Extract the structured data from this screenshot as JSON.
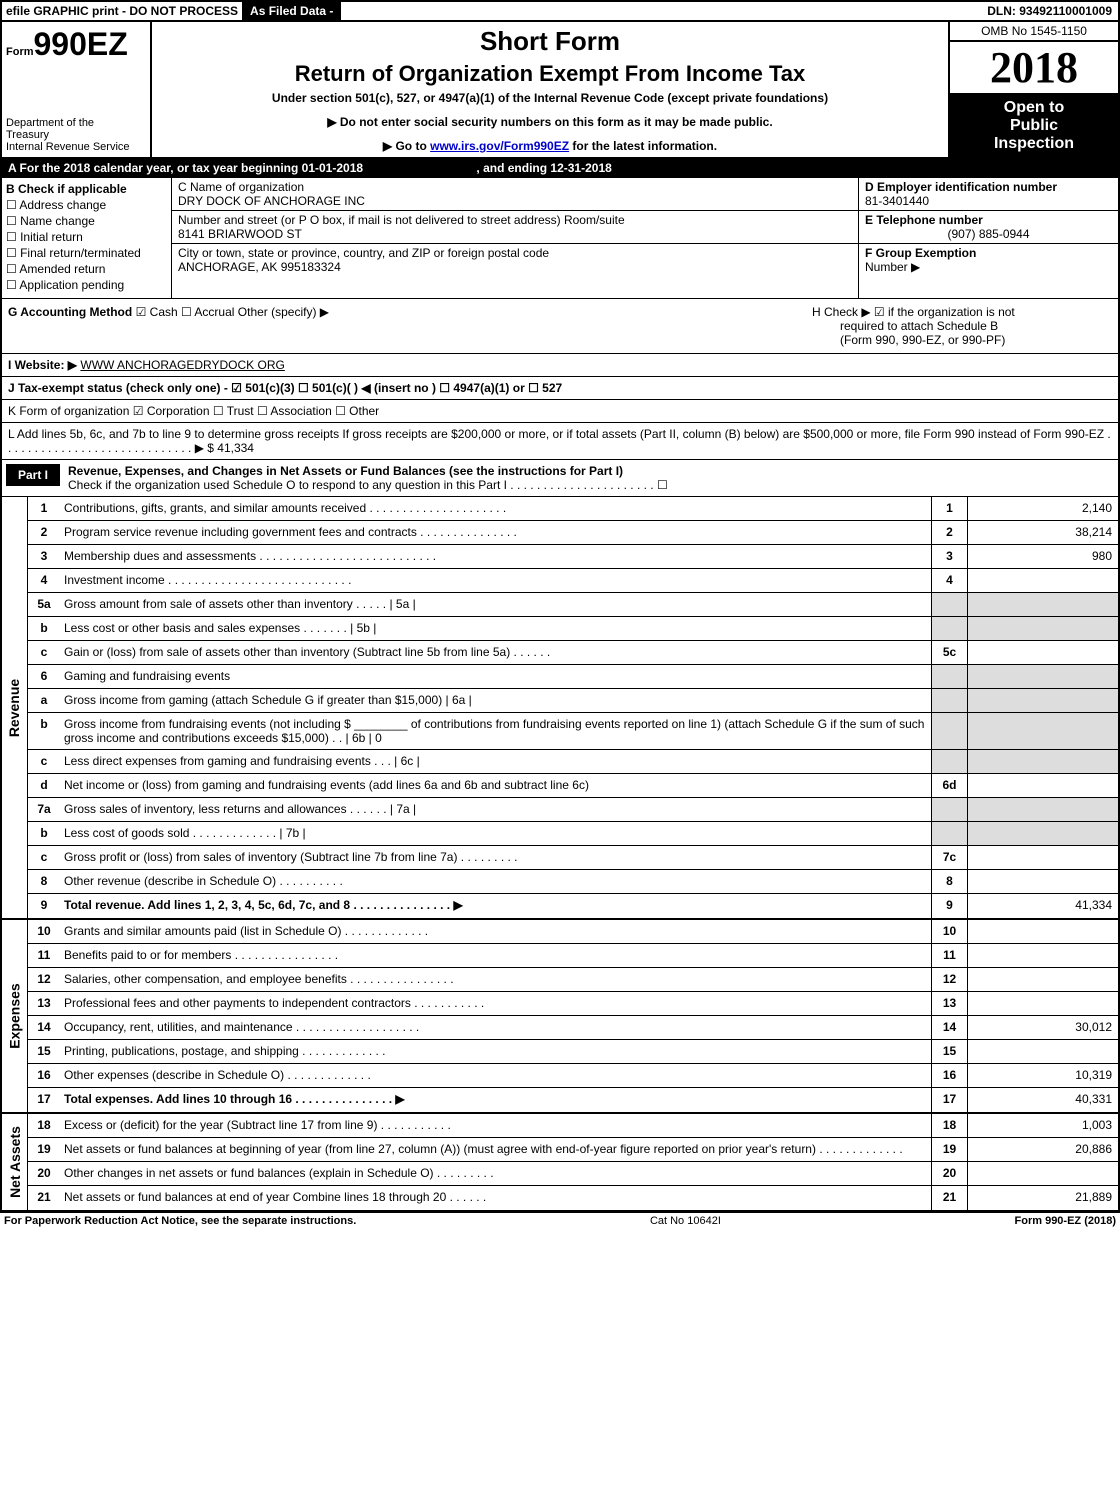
{
  "topbar": {
    "efile": "efile GRAPHIC print - DO NOT PROCESS",
    "filed": "As Filed Data -",
    "dln": "DLN: 93492110001009"
  },
  "header": {
    "form_prefix": "Form",
    "form_no": "990EZ",
    "dept1": "Department of the",
    "dept2": "Treasury",
    "dept3": "Internal Revenue Service",
    "short_form": "Short Form",
    "title": "Return of Organization Exempt From Income Tax",
    "under": "Under section 501(c), 527, or 4947(a)(1) of the Internal Revenue Code (except private foundations)",
    "note1": "▶ Do not enter social security numbers on this form as it may be made public.",
    "note2_pre": "▶ Go to ",
    "note2_link": "www.irs.gov/Form990EZ",
    "note2_post": " for the latest information.",
    "omb": "OMB No 1545-1150",
    "year": "2018",
    "open1": "Open to",
    "open2": "Public",
    "open3": "Inspection"
  },
  "row_a": {
    "pre": "A  For the 2018 calendar year, or tax year beginning 01-01-2018",
    "end": ", and ending 12-31-2018"
  },
  "col_b": {
    "title": "B  Check if applicable",
    "c1": "☐ Address change",
    "c2": "☐ Name change",
    "c3": "☐ Initial return",
    "c4": "☐ Final return/terminated",
    "c5": "☐ Amended return",
    "c6": "☐ Application pending"
  },
  "col_c": {
    "c_label": "C Name of organization",
    "c_name": "DRY DOCK OF ANCHORAGE INC",
    "addr_label": "Number and street (or P O box, if mail is not delivered to street address)    Room/suite",
    "addr": "8141 BRIARWOOD ST",
    "city_label": "City or town, state or province, country, and ZIP or foreign postal code",
    "city": "ANCHORAGE, AK  995183324"
  },
  "col_def": {
    "d_label": "D Employer identification number",
    "d_val": "81-3401440",
    "e_label": "E Telephone number",
    "e_val": "(907) 885-0944",
    "f_label": "F Group Exemption",
    "f_label2": "Number   ▶"
  },
  "gh": {
    "g_label": "G Accounting Method",
    "g_val": "   ☑ Cash   ☐ Accrual   Other (specify) ▶",
    "h_label": "H   Check ▶   ☑ if the organization is not",
    "h_line2": "required to attach Schedule B",
    "h_line3": "(Form 990, 990-EZ, or 990-PF)"
  },
  "row_i": {
    "label": "I Website: ▶",
    "val": "WWW ANCHORAGEDRYDOCK ORG"
  },
  "row_j": "J Tax-exempt status (check only one) - ☑ 501(c)(3) ☐ 501(c)( ) ◀ (insert no ) ☐ 4947(a)(1) or ☐ 527",
  "row_k": "K Form of organization     ☑ Corporation  ☐ Trust  ☐ Association  ☐ Other",
  "row_l": {
    "text": "L Add lines 5b, 6c, and 7b to line 9 to determine gross receipts  If gross receipts are $200,000 or more, or if total assets (Part II, column (B) below) are $500,000 or more, file Form 990 instead of Form 990-EZ  . . . . . . . . . . . . . . . . . . . . . . . . . . . . . ▶ $ 41,334"
  },
  "part1": {
    "tab": "Part I",
    "title": "Revenue, Expenses, and Changes in Net Assets or Fund Balances (see the instructions for Part I)",
    "sub": "Check if the organization used Schedule O to respond to any question in this Part I  . . . . . . . . . . . . . . . . . . . . . .  ☐"
  },
  "sections": [
    {
      "label": "Revenue",
      "lines": [
        {
          "n": "1",
          "d": "Contributions, gifts, grants, and similar amounts received . . . . . . . . . . . . . . . . . . . . .",
          "ref": "1",
          "amt": "2,140"
        },
        {
          "n": "2",
          "d": "Program service revenue including government fees and contracts . . . . . . . . . . . . . . .",
          "ref": "2",
          "amt": "38,214"
        },
        {
          "n": "3",
          "d": "Membership dues and assessments . . . . . . . . . . . . . . . . . . . . . . . . . . .",
          "ref": "3",
          "amt": "980"
        },
        {
          "n": "4",
          "d": "Investment income . . . . . . . . . . . . . . . . . . . . . . . . . . . .",
          "ref": "4",
          "amt": ""
        },
        {
          "n": "5a",
          "d": "Gross amount from sale of assets other than inventory . . . . .      |  5a  |",
          "ref": "",
          "amt": "",
          "shade": true
        },
        {
          "n": "b",
          "d": "Less  cost or other basis and sales expenses . . . . . . .      |  5b  |",
          "ref": "",
          "amt": "",
          "shade": true
        },
        {
          "n": "c",
          "d": "Gain or (loss) from sale of assets other than inventory (Subtract line 5b from line 5a) . . . . . .",
          "ref": "5c",
          "amt": ""
        },
        {
          "n": "6",
          "d": "Gaming and fundraising events",
          "ref": "",
          "amt": "",
          "shade": true
        },
        {
          "n": "a",
          "d": "Gross income from gaming (attach Schedule G if greater than $15,000)    |  6a  |",
          "ref": "",
          "amt": "",
          "shade": true
        },
        {
          "n": "b",
          "d": "Gross income from fundraising events (not including $ ________ of contributions from fundraising events reported on line 1) (attach Schedule G if the sum of such gross income and contributions exceeds $15,000)   . .    |  6b  |                 0",
          "ref": "",
          "amt": "",
          "shade": true
        },
        {
          "n": "c",
          "d": "Less  direct expenses from gaming and fundraising events     . . .    |  6c  |",
          "ref": "",
          "amt": "",
          "shade": true
        },
        {
          "n": "d",
          "d": "Net income or (loss) from gaming and fundraising events (add lines 6a and 6b and subtract line 6c)",
          "ref": "6d",
          "amt": ""
        },
        {
          "n": "7a",
          "d": "Gross sales of inventory, less returns and allowances . . . . . .    |  7a  |",
          "ref": "",
          "amt": "",
          "shade": true
        },
        {
          "n": "b",
          "d": "Less  cost of goods sold           . . . . . . . . . . . . .    |  7b  |",
          "ref": "",
          "amt": "",
          "shade": true
        },
        {
          "n": "c",
          "d": "Gross profit or (loss) from sales of inventory (Subtract line 7b from line 7a) . . . . . . . . .",
          "ref": "7c",
          "amt": ""
        },
        {
          "n": "8",
          "d": "Other revenue (describe in Schedule O)                          . . . . . . . . . .",
          "ref": "8",
          "amt": ""
        },
        {
          "n": "9",
          "d": "Total revenue. Add lines 1, 2, 3, 4, 5c, 6d, 7c, and 8  . . . . . . . . . . . . . . .   ▶",
          "ref": "9",
          "amt": "41,334",
          "bold": true
        }
      ]
    },
    {
      "label": "Expenses",
      "lines": [
        {
          "n": "10",
          "d": "Grants and similar amounts paid (list in Schedule O)          . . . . . . . . . . . . .",
          "ref": "10",
          "amt": ""
        },
        {
          "n": "11",
          "d": "Benefits paid to or for members               . . . . . . . . . . . . . . . .",
          "ref": "11",
          "amt": ""
        },
        {
          "n": "12",
          "d": "Salaries, other compensation, and employee benefits . . . . . . . . . . . . . . . .",
          "ref": "12",
          "amt": ""
        },
        {
          "n": "13",
          "d": "Professional fees and other payments to independent contractors  . . . . . . . . . . .",
          "ref": "13",
          "amt": ""
        },
        {
          "n": "14",
          "d": "Occupancy, rent, utilities, and maintenance . . . . . . . . . . . . . . . . . . .",
          "ref": "14",
          "amt": "30,012"
        },
        {
          "n": "15",
          "d": "Printing, publications, postage, and shipping               . . . . . . . . . . . . .",
          "ref": "15",
          "amt": ""
        },
        {
          "n": "16",
          "d": "Other expenses (describe in Schedule O)                     . . . . . . . . . . . . .",
          "ref": "16",
          "amt": "10,319"
        },
        {
          "n": "17",
          "d": "Total expenses. Add lines 10 through 16         . . . . . . . . . . . . . . .   ▶",
          "ref": "17",
          "amt": "40,331",
          "bold": true
        }
      ]
    },
    {
      "label": "Net Assets",
      "lines": [
        {
          "n": "18",
          "d": "Excess or (deficit) for the year (Subtract line 17 from line 9)      . . . . . . . . . . .",
          "ref": "18",
          "amt": "1,003"
        },
        {
          "n": "19",
          "d": "Net assets or fund balances at beginning of year (from line 27, column (A)) (must agree with end-of-year figure reported on prior year's return)               . . . . . . . . . . . . .",
          "ref": "19",
          "amt": "20,886"
        },
        {
          "n": "20",
          "d": "Other changes in net assets or fund balances (explain in Schedule O)     . . . . . . . . .",
          "ref": "20",
          "amt": ""
        },
        {
          "n": "21",
          "d": "Net assets or fund balances at end of year  Combine lines 18 through 20         . . . . . .",
          "ref": "21",
          "amt": "21,889"
        }
      ]
    }
  ],
  "footer": {
    "left": "For Paperwork Reduction Act Notice, see the separate instructions.",
    "mid": "Cat  No  10642I",
    "right": "Form 990-EZ (2018)"
  }
}
